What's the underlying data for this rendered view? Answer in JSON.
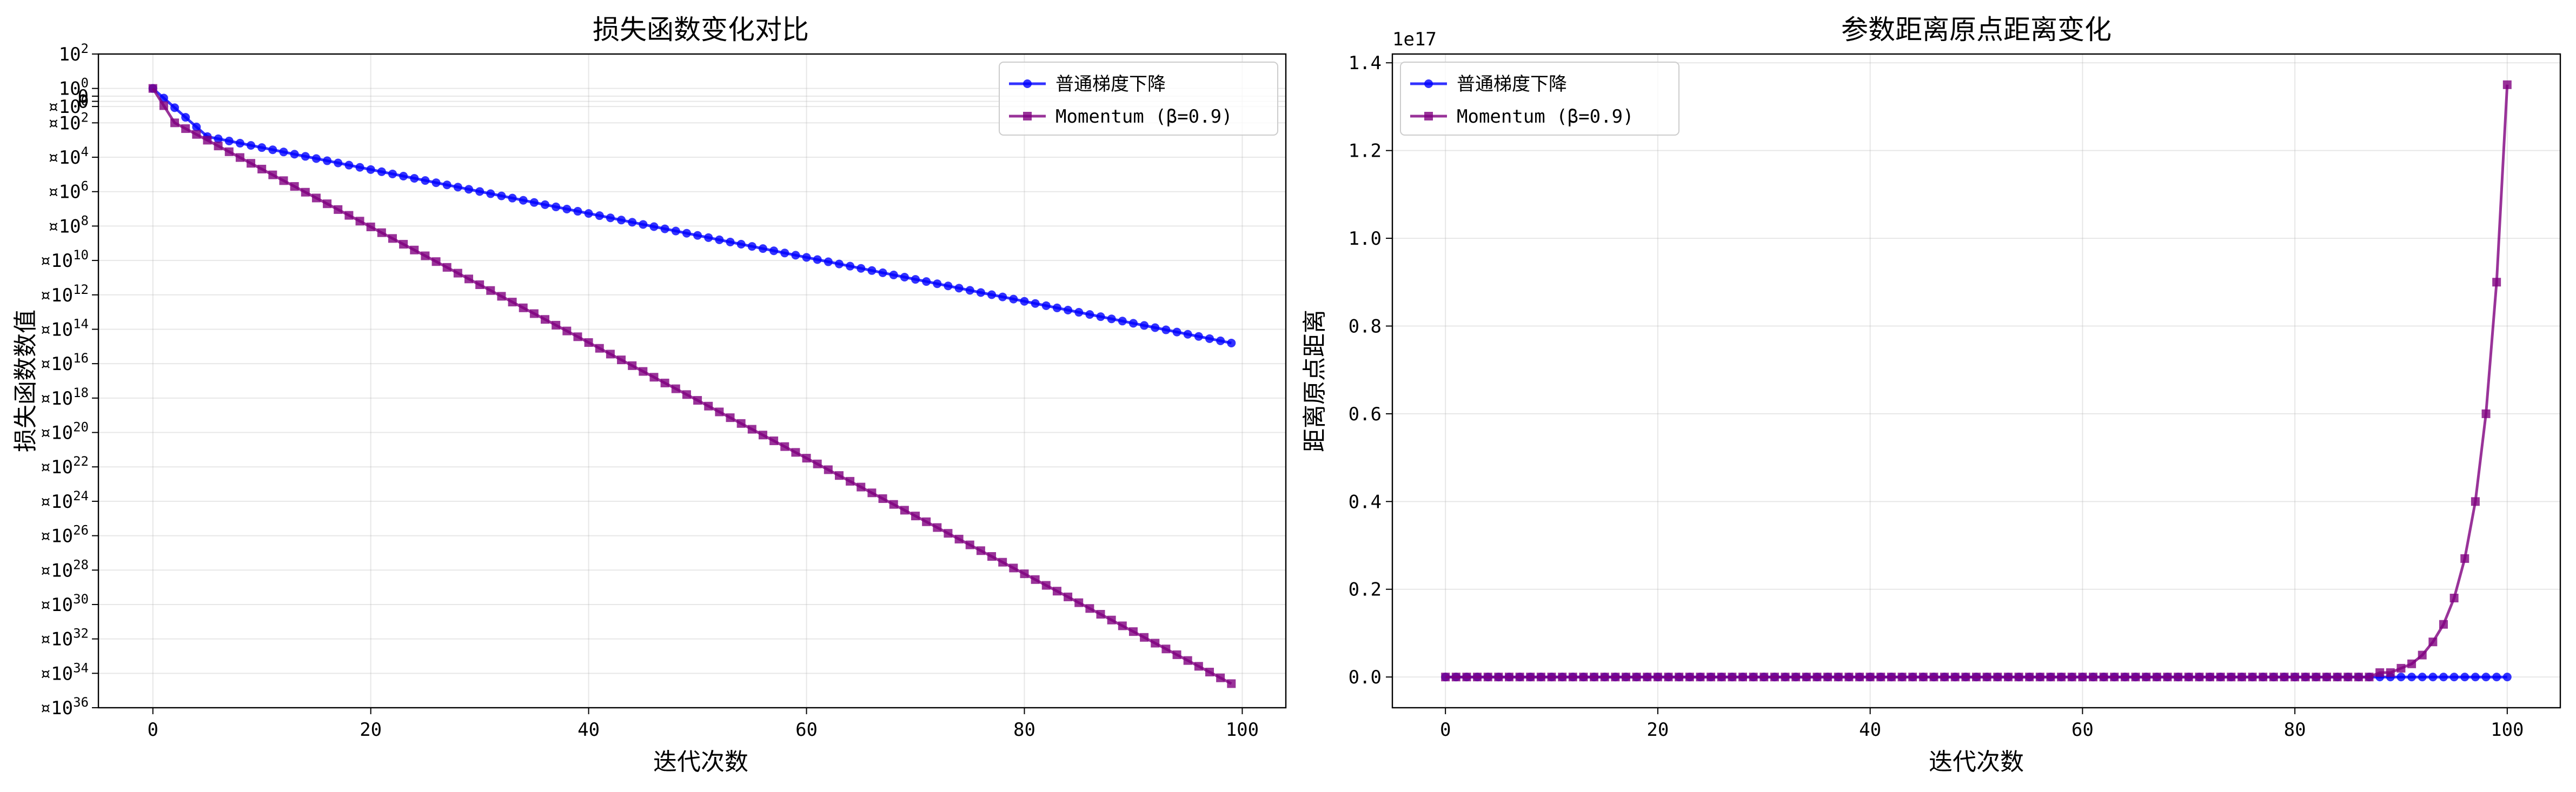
{
  "colors": {
    "gd": "#0000ff",
    "mom": "#800080",
    "grid": "#b0b0b0"
  },
  "chart_data": [
    {
      "type": "line",
      "title": "损失函数变化对比",
      "xlabel": "迭代次数",
      "ylabel": "损失函数数值",
      "yscale": "log",
      "xlim": [
        -5,
        104
      ],
      "ylim_exp": [
        -36,
        2
      ],
      "xticks": [
        0,
        20,
        40,
        60,
        80,
        100
      ],
      "yticks": [
        {
          "exp": 2,
          "label": "10",
          "sup": "2"
        },
        {
          "exp": 0,
          "label": "10",
          "sup": "0"
        },
        {
          "exp": -2,
          "label": "¤10",
          "sup": "2"
        },
        {
          "exp": -4,
          "label": "¤10",
          "sup": "4"
        },
        {
          "exp": -6,
          "label": "¤10",
          "sup": "6"
        },
        {
          "exp": -8,
          "label": "¤10",
          "sup": "8"
        },
        {
          "exp": -10,
          "label": "¤10",
          "sup": "10"
        },
        {
          "exp": -12,
          "label": "¤10",
          "sup": "12"
        },
        {
          "exp": -14,
          "label": "¤10",
          "sup": "14"
        },
        {
          "exp": -16,
          "label": "¤10",
          "sup": "16"
        },
        {
          "exp": -18,
          "label": "¤10",
          "sup": "18"
        },
        {
          "exp": -20,
          "label": "¤10",
          "sup": "20"
        },
        {
          "exp": -22,
          "label": "¤10",
          "sup": "22"
        },
        {
          "exp": -24,
          "label": "¤10",
          "sup": "24"
        },
        {
          "exp": -26,
          "label": "¤10",
          "sup": "26"
        },
        {
          "exp": -28,
          "label": "¤10",
          "sup": "28"
        },
        {
          "exp": -30,
          "label": "¤10",
          "sup": "30"
        },
        {
          "exp": -32,
          "label": "¤10",
          "sup": "32"
        },
        {
          "exp": -34,
          "label": "¤10",
          "sup": "34"
        },
        {
          "exp": -36,
          "label": "¤10",
          "sup": "36"
        }
      ],
      "extra_ticks": [
        {
          "exp": -0.45,
          "label": "0"
        },
        {
          "exp": -0.75,
          "label": "0"
        },
        {
          "exp": -1.05,
          "label": "¤10",
          "sup": "0"
        }
      ],
      "grid": true,
      "legend": "top-right",
      "series": [
        {
          "name": "普通梯度下降",
          "marker": "circle",
          "x_start": 0,
          "x_end": 99,
          "log10_first": 0.0,
          "log10_knee_x": 5,
          "log10_knee": -2.8,
          "log10_last": -14.8
        },
        {
          "name": "Momentum (β=0.9)",
          "marker": "square",
          "x_start": 0,
          "x_end": 99,
          "log10_first": 0.0,
          "log10_knee_x": 2,
          "log10_knee": -2.0,
          "log10_last": -34.6
        }
      ]
    },
    {
      "type": "line",
      "title": "参数距离原点距离变化",
      "xlabel": "迭代次数",
      "ylabel": "距离原点距离",
      "offset_text": "1e17",
      "xlim": [
        -5,
        105
      ],
      "ylim": [
        -0.07,
        1.42
      ],
      "xticks": [
        0,
        20,
        40,
        60,
        80,
        100
      ],
      "yticks": [
        "0.0",
        "0.2",
        "0.4",
        "0.6",
        "0.8",
        "1.0",
        "1.2",
        "1.4"
      ],
      "grid": true,
      "legend": "top-left",
      "series": [
        {
          "name": "普通梯度下降",
          "marker": "circle",
          "x_start": 0,
          "x_end": 100,
          "values_e17": "all ~0"
        },
        {
          "name": "Momentum (β=0.9)",
          "marker": "square",
          "x_start": 0,
          "x_end": 100,
          "tail_values_e17": [
            0.0,
            0.0,
            0.0,
            0.01,
            0.01,
            0.02,
            0.03,
            0.05,
            0.08,
            0.12,
            0.18,
            0.27,
            0.4,
            0.6,
            0.9,
            1.35
          ],
          "growth_per_step": 1.5
        }
      ]
    }
  ]
}
